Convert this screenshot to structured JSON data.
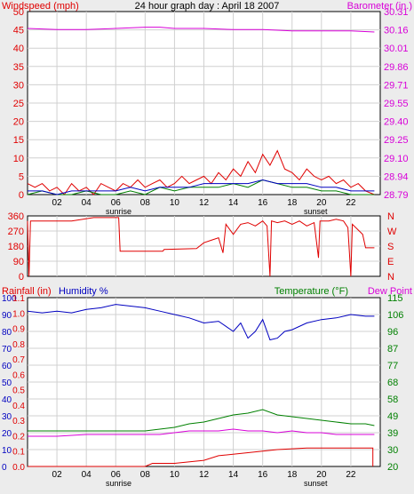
{
  "header": {
    "left_label": "Windspeed (mph)",
    "title": "24 hour graph day : April 18 2007",
    "right_label": "Barometer (in.)"
  },
  "colors": {
    "red": "#e00000",
    "magenta": "#d800d8",
    "blue": "#0000c0",
    "green": "#008000",
    "grid": "#d0d0d0",
    "frame": "#000000"
  },
  "x_axis": {
    "ticks": [
      "02",
      "04",
      "06",
      "08",
      "10",
      "12",
      "14",
      "16",
      "18",
      "20",
      "22"
    ],
    "sunrise_label": "sunrise",
    "sunrise_hour": 6.2,
    "sunset_label": "sunset",
    "sunset_hour": 19.6
  },
  "chart_data": [
    {
      "type": "line",
      "panel": "wind-barometer",
      "xlim": [
        0,
        24
      ],
      "left_axis": {
        "label": "Windspeed (mph)",
        "range": [
          0,
          50
        ],
        "ticks": [
          "0",
          "5",
          "10",
          "15",
          "20",
          "25",
          "30",
          "35",
          "40",
          "45",
          "50"
        ]
      },
      "right_axis": {
        "label": "Barometer (in.)",
        "range": [
          28.79,
          30.31
        ],
        "ticks": [
          "28.79",
          "28.94",
          "29.10",
          "29.25",
          "29.40",
          "29.55",
          "29.71",
          "29.86",
          "30.01",
          "30.16",
          "30.31"
        ]
      },
      "series": [
        {
          "axis": "right",
          "color": "#d800d8",
          "points": [
            [
              0,
              30.17
            ],
            [
              2,
              30.16
            ],
            [
              4,
              30.16
            ],
            [
              6,
              30.17
            ],
            [
              8,
              30.18
            ],
            [
              9,
              30.18
            ],
            [
              10,
              30.17
            ],
            [
              12,
              30.17
            ],
            [
              14,
              30.16
            ],
            [
              16,
              30.16
            ],
            [
              18,
              30.15
            ],
            [
              20,
              30.15
            ],
            [
              22,
              30.15
            ],
            [
              23.6,
              30.14
            ]
          ]
        },
        {
          "axis": "left",
          "color": "#e00000",
          "points": [
            [
              0,
              3
            ],
            [
              0.5,
              2
            ],
            [
              1,
              3
            ],
            [
              1.5,
              1
            ],
            [
              2,
              2
            ],
            [
              2.5,
              0
            ],
            [
              3,
              3
            ],
            [
              3.5,
              1
            ],
            [
              4,
              2
            ],
            [
              4.5,
              0
            ],
            [
              5,
              3
            ],
            [
              5.5,
              2
            ],
            [
              6,
              1
            ],
            [
              6.5,
              3
            ],
            [
              7,
              2
            ],
            [
              7.5,
              4
            ],
            [
              8,
              2
            ],
            [
              8.5,
              3
            ],
            [
              9,
              4
            ],
            [
              9.5,
              2
            ],
            [
              10,
              3
            ],
            [
              10.5,
              5
            ],
            [
              11,
              3
            ],
            [
              11.5,
              4
            ],
            [
              12,
              5
            ],
            [
              12.5,
              3
            ],
            [
              13,
              6
            ],
            [
              13.5,
              4
            ],
            [
              14,
              7
            ],
            [
              14.5,
              5
            ],
            [
              15,
              9
            ],
            [
              15.5,
              6
            ],
            [
              16,
              11
            ],
            [
              16.5,
              8
            ],
            [
              17,
              12
            ],
            [
              17.5,
              7
            ],
            [
              18,
              6
            ],
            [
              18.5,
              4
            ],
            [
              19,
              7
            ],
            [
              19.5,
              5
            ],
            [
              20,
              4
            ],
            [
              20.5,
              5
            ],
            [
              21,
              3
            ],
            [
              21.5,
              4
            ],
            [
              22,
              2
            ],
            [
              22.5,
              3
            ],
            [
              23,
              1
            ],
            [
              23.6,
              0
            ]
          ]
        },
        {
          "axis": "left",
          "color": "#008000",
          "points": [
            [
              0,
              0
            ],
            [
              1,
              1
            ],
            [
              2,
              0
            ],
            [
              3,
              0
            ],
            [
              4,
              1
            ],
            [
              5,
              0
            ],
            [
              6,
              0
            ],
            [
              7,
              1
            ],
            [
              8,
              0
            ],
            [
              9,
              2
            ],
            [
              10,
              1
            ],
            [
              11,
              2
            ],
            [
              12,
              2
            ],
            [
              13,
              2
            ],
            [
              14,
              3
            ],
            [
              15,
              2
            ],
            [
              16,
              4
            ],
            [
              17,
              3
            ],
            [
              18,
              2
            ],
            [
              19,
              2
            ],
            [
              20,
              1
            ],
            [
              21,
              1
            ],
            [
              22,
              0
            ],
            [
              23.6,
              0
            ]
          ]
        },
        {
          "axis": "left",
          "color": "#0000c0",
          "points": [
            [
              0,
              1
            ],
            [
              1,
              1
            ],
            [
              2,
              0
            ],
            [
              3,
              1
            ],
            [
              4,
              1
            ],
            [
              5,
              1
            ],
            [
              6,
              1
            ],
            [
              7,
              2
            ],
            [
              8,
              1
            ],
            [
              9,
              2
            ],
            [
              10,
              2
            ],
            [
              11,
              2
            ],
            [
              12,
              3
            ],
            [
              13,
              3
            ],
            [
              14,
              3
            ],
            [
              15,
              3
            ],
            [
              16,
              4
            ],
            [
              17,
              3
            ],
            [
              18,
              3
            ],
            [
              19,
              3
            ],
            [
              20,
              2
            ],
            [
              21,
              2
            ],
            [
              22,
              1
            ],
            [
              23.6,
              1
            ]
          ]
        }
      ]
    },
    {
      "type": "line",
      "panel": "wind-direction",
      "xlim": [
        0,
        24
      ],
      "left_axis": {
        "range": [
          0,
          360
        ],
        "ticks": [
          "0",
          "90",
          "180",
          "270",
          "360"
        ]
      },
      "right_axis": {
        "ticks": [
          "N",
          "E",
          "S",
          "W",
          "N"
        ]
      },
      "series": [
        {
          "color": "#e00000",
          "points": [
            [
              0,
              330
            ],
            [
              0.1,
              0
            ],
            [
              0.2,
              330
            ],
            [
              3,
              330
            ],
            [
              4.5,
              350
            ],
            [
              6.2,
              350
            ],
            [
              6.3,
              150
            ],
            [
              9.2,
              150
            ],
            [
              9.3,
              160
            ],
            [
              11.5,
              165
            ],
            [
              12,
              200
            ],
            [
              12.5,
              215
            ],
            [
              13,
              230
            ],
            [
              13.3,
              140
            ],
            [
              13.5,
              310
            ],
            [
              14,
              250
            ],
            [
              14.5,
              310
            ],
            [
              15,
              320
            ],
            [
              15.5,
              300
            ],
            [
              16,
              330
            ],
            [
              16.3,
              300
            ],
            [
              16.5,
              0
            ],
            [
              16.6,
              330
            ],
            [
              17,
              320
            ],
            [
              17.5,
              330
            ],
            [
              18,
              310
            ],
            [
              18.5,
              330
            ],
            [
              19,
              300
            ],
            [
              19.5,
              320
            ],
            [
              19.8,
              110
            ],
            [
              19.9,
              330
            ],
            [
              20.5,
              330
            ],
            [
              21,
              340
            ],
            [
              21.5,
              330
            ],
            [
              21.8,
              290
            ],
            [
              22,
              0
            ],
            [
              22.1,
              310
            ],
            [
              22.8,
              250
            ],
            [
              23,
              170
            ],
            [
              23.6,
              170
            ]
          ]
        }
      ]
    },
    {
      "type": "line",
      "panel": "rain-humidity-temperature",
      "xlim": [
        0,
        24
      ],
      "left_axis": {
        "label": "Rainfall (in)",
        "range": [
          0,
          1.0
        ],
        "ticks": [
          "0.0",
          "0.1",
          "0.2",
          "0.3",
          "0.4",
          "0.5",
          "0.6",
          "0.7",
          "0.8",
          "0.9",
          "1.0",
          "1.1"
        ]
      },
      "left_axis_humidity": {
        "label": "Humidity %",
        "range": [
          0,
          100
        ],
        "ticks": [
          "0",
          "10",
          "20",
          "30",
          "40",
          "50",
          "60",
          "70",
          "80",
          "90",
          "100"
        ]
      },
      "right_axis": {
        "label": "Temperature (°F)",
        "label2": "Dew Point",
        "range": [
          20,
          115
        ],
        "ticks": [
          "20",
          "30",
          "39",
          "49",
          "58",
          "68",
          "77",
          "87",
          "96",
          "106",
          "115"
        ]
      },
      "series": [
        {
          "axis": "humidity",
          "color": "#0000c0",
          "points": [
            [
              0,
              92
            ],
            [
              1,
              91
            ],
            [
              2,
              92
            ],
            [
              3,
              91
            ],
            [
              4,
              93
            ],
            [
              5,
              94
            ],
            [
              6,
              96
            ],
            [
              7,
              95
            ],
            [
              8,
              94
            ],
            [
              9,
              92
            ],
            [
              10,
              90
            ],
            [
              11,
              88
            ],
            [
              12,
              85
            ],
            [
              13,
              86
            ],
            [
              14,
              80
            ],
            [
              14.5,
              85
            ],
            [
              15,
              76
            ],
            [
              15.5,
              80
            ],
            [
              16,
              87
            ],
            [
              16.5,
              75
            ],
            [
              17,
              76
            ],
            [
              17.5,
              80
            ],
            [
              18,
              81
            ],
            [
              19,
              85
            ],
            [
              20,
              87
            ],
            [
              21,
              88
            ],
            [
              22,
              90
            ],
            [
              23,
              89
            ],
            [
              23.6,
              89
            ]
          ]
        },
        {
          "axis": "temp",
          "color": "#008000",
          "points": [
            [
              0,
              40
            ],
            [
              2,
              40
            ],
            [
              4,
              40
            ],
            [
              6,
              40
            ],
            [
              8,
              40
            ],
            [
              9,
              41
            ],
            [
              10,
              42
            ],
            [
              11,
              44
            ],
            [
              12,
              45
            ],
            [
              13,
              47
            ],
            [
              14,
              49
            ],
            [
              15,
              50
            ],
            [
              16,
              52
            ],
            [
              17,
              49
            ],
            [
              18,
              48
            ],
            [
              19,
              47
            ],
            [
              20,
              46
            ],
            [
              21,
              45
            ],
            [
              22,
              44
            ],
            [
              23,
              44
            ],
            [
              23.6,
              43
            ]
          ]
        },
        {
          "axis": "temp",
          "color": "#d800d8",
          "points": [
            [
              0,
              37
            ],
            [
              2,
              37
            ],
            [
              4,
              38
            ],
            [
              6,
              38
            ],
            [
              8,
              38
            ],
            [
              9,
              38
            ],
            [
              10,
              39
            ],
            [
              11,
              40
            ],
            [
              12,
              40
            ],
            [
              13,
              40
            ],
            [
              14,
              41
            ],
            [
              15,
              40
            ],
            [
              16,
              40
            ],
            [
              17,
              39
            ],
            [
              18,
              40
            ],
            [
              19,
              39
            ],
            [
              20,
              39
            ],
            [
              21,
              38
            ],
            [
              22,
              38
            ],
            [
              23,
              38
            ],
            [
              23.6,
              38
            ]
          ]
        },
        {
          "axis": "rain",
          "color": "#e00000",
          "points": [
            [
              0,
              0
            ],
            [
              8,
              0
            ],
            [
              8.5,
              0.02
            ],
            [
              10,
              0.02
            ],
            [
              12,
              0.04
            ],
            [
              13,
              0.07
            ],
            [
              15,
              0.09
            ],
            [
              16,
              0.1
            ],
            [
              17,
              0.11
            ],
            [
              19,
              0.12
            ],
            [
              21,
              0.12
            ],
            [
              23,
              0.12
            ],
            [
              23.5,
              0.12
            ],
            [
              23.5,
              0
            ]
          ]
        }
      ]
    }
  ]
}
